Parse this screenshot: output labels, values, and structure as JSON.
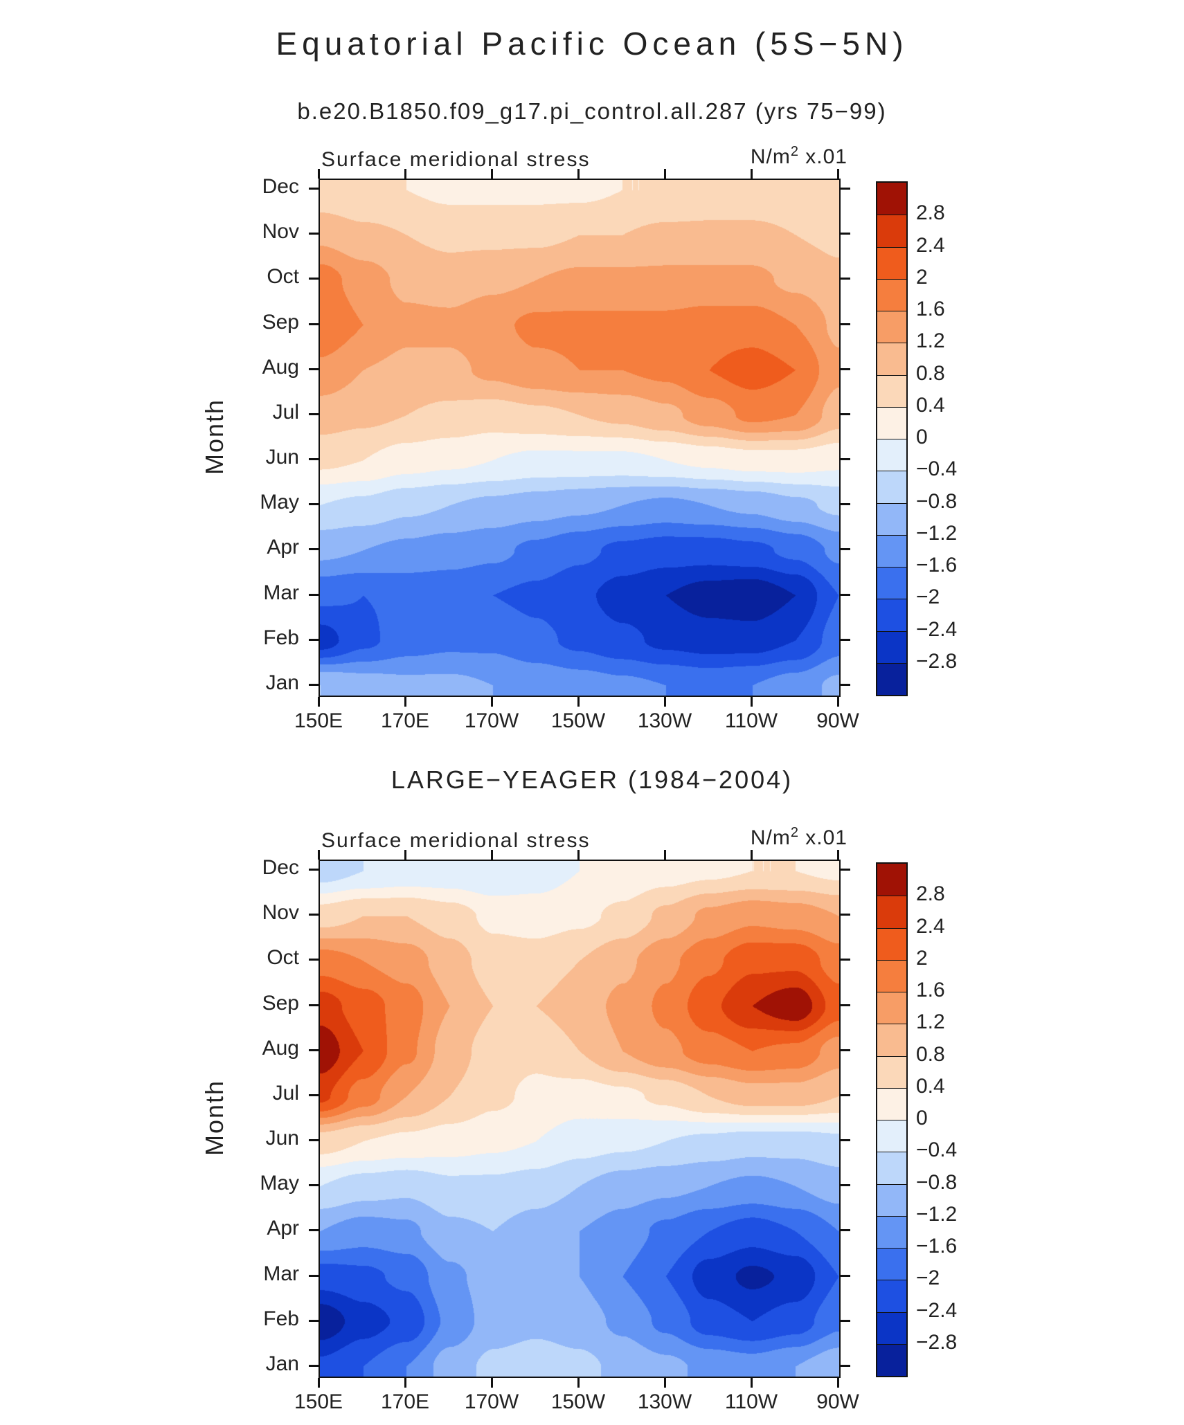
{
  "page": {
    "title": "Equatorial Pacific Ocean (5S−5N)",
    "subtitle_top": "b.e20.B1850.f09_g17.pi_control.all.287 (yrs 75−99)",
    "subtitle_bottom": "LARGE−YEAGER (1984−2004)",
    "ylabel": "Month"
  },
  "colorbar": {
    "levels": [
      -2.8,
      -2.4,
      -2,
      -1.6,
      -1.2,
      -0.8,
      -0.4,
      0,
      0.4,
      0.8,
      1.2,
      1.6,
      2,
      2.4,
      2.8
    ],
    "colors_ascending": [
      "#08219c",
      "#0b35c6",
      "#1e50e2",
      "#3a70ee",
      "#6495f4",
      "#92b7f8",
      "#bdd7fa",
      "#e3effb",
      "#fdf1e5",
      "#fbd8b9",
      "#f9bb90",
      "#f79d66",
      "#f57e3e",
      "#ef5c1d",
      "#da3b0b",
      "#a01205"
    ],
    "tick_labels_top_to_bottom": [
      "2.8",
      "2.4",
      "2",
      "1.6",
      "1.2",
      "0.8",
      "0.4",
      "0",
      "−0.4",
      "−0.8",
      "−1.2",
      "−1.6",
      "−2",
      "−2.4",
      "−2.8"
    ]
  },
  "chart_data": [
    {
      "type": "heatmap",
      "title": "Surface meridional stress",
      "units": {
        "prefix": "N/m",
        "sup": "2",
        "suffix": " x.01"
      },
      "dataset_label": "b.e20.B1850.f09_g17.pi_control.all.287 (yrs 75−99)",
      "ylabel": "Month",
      "x_range_deg_east": [
        150,
        270
      ],
      "x_tick_labels": [
        "150E",
        "170E",
        "170W",
        "150W",
        "130W",
        "110W",
        "90W"
      ],
      "x_tick_lons": [
        150,
        170,
        190,
        210,
        230,
        250,
        270
      ],
      "longitudes_deg_east": [
        150,
        160,
        170,
        180,
        190,
        200,
        210,
        220,
        230,
        240,
        250,
        260,
        270
      ],
      "y_categories_bottom_to_top": [
        "Jan",
        "Feb",
        "Mar",
        "Apr",
        "May",
        "Jun",
        "Jul",
        "Aug",
        "Sep",
        "Oct",
        "Nov",
        "Dec"
      ],
      "values_rows_jan_to_dec_units_0p01_N_m2": [
        [
          -0.8,
          -1.0,
          -1.1,
          -1.1,
          -1.2,
          -1.3,
          -1.4,
          -1.5,
          -1.6,
          -1.7,
          -1.6,
          -1.4,
          -1.1
        ],
        [
          -2.6,
          -2.1,
          -1.8,
          -1.7,
          -1.7,
          -1.9,
          -2.1,
          -2.3,
          -2.5,
          -2.6,
          -2.6,
          -2.4,
          -1.8
        ],
        [
          -1.9,
          -2.0,
          -1.9,
          -1.9,
          -2.0,
          -2.1,
          -2.3,
          -2.6,
          -2.8,
          -3.0,
          -3.1,
          -2.8,
          -2.0
        ],
        [
          -1.1,
          -1.2,
          -1.3,
          -1.4,
          -1.5,
          -1.7,
          -1.9,
          -2.1,
          -2.2,
          -2.2,
          -2.1,
          -1.9,
          -1.5
        ],
        [
          -0.4,
          -0.5,
          -0.7,
          -0.8,
          -0.9,
          -1.0,
          -1.1,
          -1.2,
          -1.3,
          -1.2,
          -1.1,
          -0.9,
          -0.7
        ],
        [
          0.5,
          0.4,
          0.2,
          0.1,
          0.0,
          -0.1,
          -0.1,
          -0.1,
          0.0,
          0.1,
          0.2,
          0.2,
          0.1
        ],
        [
          1.0,
          0.9,
          0.8,
          0.7,
          0.6,
          0.7,
          0.8,
          0.9,
          1.1,
          1.4,
          1.7,
          1.6,
          1.0
        ],
        [
          1.5,
          1.2,
          1.1,
          1.1,
          1.3,
          1.5,
          1.6,
          1.6,
          1.7,
          2.0,
          2.2,
          2.0,
          1.3
        ],
        [
          2.0,
          1.6,
          1.3,
          1.3,
          1.5,
          1.7,
          1.7,
          1.7,
          1.7,
          1.8,
          1.8,
          1.6,
          1.1
        ],
        [
          1.8,
          1.4,
          1.1,
          1.0,
          1.1,
          1.2,
          1.3,
          1.3,
          1.3,
          1.3,
          1.3,
          1.1,
          0.9
        ],
        [
          1.1,
          0.9,
          0.8,
          0.7,
          0.7,
          0.7,
          0.8,
          0.8,
          0.9,
          0.9,
          0.9,
          0.8,
          0.7
        ],
        [
          0.5,
          0.4,
          0.4,
          0.3,
          0.3,
          0.3,
          0.3,
          0.4,
          0.4,
          0.5,
          0.5,
          0.5,
          0.4
        ]
      ]
    },
    {
      "type": "heatmap",
      "title": "Surface meridional stress",
      "units": {
        "prefix": "N/m",
        "sup": "2",
        "suffix": " x.01"
      },
      "dataset_label": "LARGE−YEAGER (1984−2004)",
      "ylabel": "Month",
      "x_range_deg_east": [
        150,
        270
      ],
      "x_tick_labels": [
        "150E",
        "170E",
        "170W",
        "150W",
        "130W",
        "110W",
        "90W"
      ],
      "x_tick_lons": [
        150,
        170,
        190,
        210,
        230,
        250,
        270
      ],
      "longitudes_deg_east": [
        150,
        160,
        170,
        180,
        190,
        200,
        210,
        220,
        230,
        240,
        250,
        260,
        270
      ],
      "y_categories_bottom_to_top": [
        "Jan",
        "Feb",
        "Mar",
        "Apr",
        "May",
        "Jun",
        "Jul",
        "Aug",
        "Sep",
        "Oct",
        "Nov",
        "Dec"
      ],
      "values_rows_jan_to_dec_units_0p01_N_m2": [
        [
          -2.3,
          -2.0,
          -1.6,
          -1.0,
          -0.7,
          -0.6,
          -0.7,
          -0.9,
          -1.1,
          -1.3,
          -1.4,
          -1.2,
          -0.9
        ],
        [
          -3.1,
          -2.6,
          -2.3,
          -1.5,
          -1.0,
          -0.9,
          -1.0,
          -1.3,
          -1.7,
          -2.2,
          -2.4,
          -2.2,
          -1.7
        ],
        [
          -2.2,
          -2.1,
          -1.9,
          -1.3,
          -1.0,
          -1.0,
          -1.2,
          -1.6,
          -2.0,
          -2.6,
          -2.9,
          -2.7,
          -2.0
        ],
        [
          -1.2,
          -1.4,
          -1.3,
          -0.9,
          -0.8,
          -1.0,
          -1.2,
          -1.4,
          -1.7,
          -2.0,
          -2.2,
          -2.0,
          -1.6
        ],
        [
          -0.4,
          -0.6,
          -0.7,
          -0.5,
          -0.5,
          -0.6,
          -0.8,
          -1.0,
          -1.1,
          -1.2,
          -1.3,
          -1.2,
          -1.0
        ],
        [
          0.6,
          0.4,
          0.3,
          0.2,
          0.1,
          0.0,
          -0.2,
          -0.3,
          -0.4,
          -0.5,
          -0.6,
          -0.6,
          -0.5
        ],
        [
          2.5,
          1.8,
          1.2,
          0.8,
          0.5,
          0.3,
          0.2,
          0.3,
          0.5,
          0.8,
          1.0,
          1.0,
          0.8
        ],
        [
          3.1,
          2.4,
          1.7,
          1.0,
          0.6,
          0.5,
          0.8,
          1.2,
          1.5,
          1.8,
          2.0,
          1.9,
          1.4
        ],
        [
          2.6,
          2.2,
          1.8,
          1.2,
          0.8,
          0.8,
          1.0,
          1.3,
          1.7,
          2.3,
          2.8,
          3.1,
          2.2
        ],
        [
          1.8,
          1.6,
          1.4,
          1.0,
          0.6,
          0.6,
          0.8,
          1.1,
          1.5,
          1.9,
          2.3,
          2.3,
          1.8
        ],
        [
          0.6,
          0.8,
          0.8,
          0.6,
          0.3,
          0.2,
          0.3,
          0.5,
          0.9,
          1.3,
          1.5,
          1.4,
          1.2
        ],
        [
          -0.6,
          -0.4,
          -0.3,
          -0.3,
          -0.4,
          -0.2,
          0.0,
          0.1,
          0.2,
          0.3,
          0.4,
          0.4,
          0.3
        ]
      ]
    }
  ]
}
